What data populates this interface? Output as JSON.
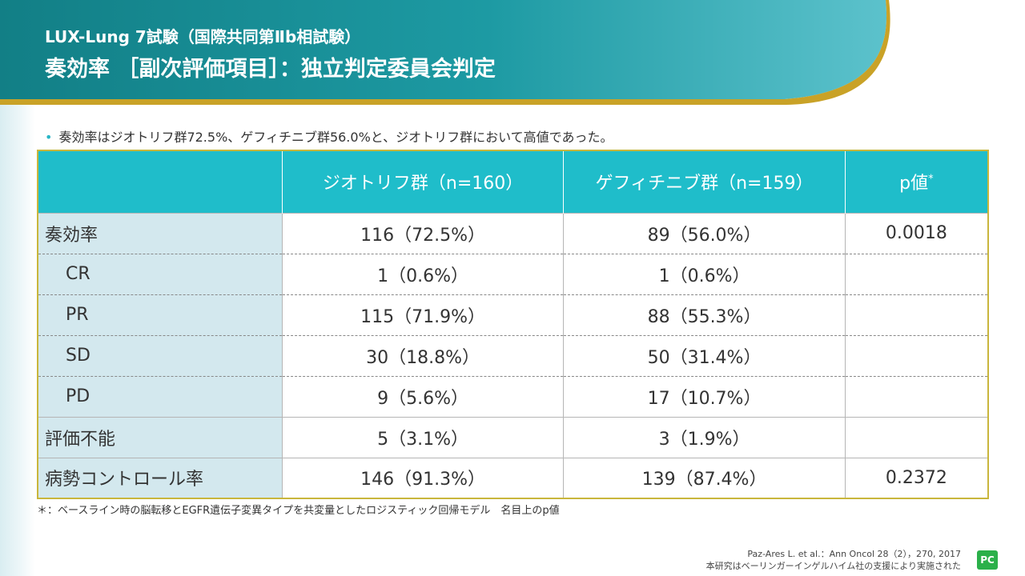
{
  "header": {
    "title_line1": "LUX-Lung 7試験（国際共同第Ⅱb相試験）",
    "title_line2": "奏効率 ［副次評価項目］：独立判定委員会判定",
    "colors": {
      "teal_dark": "#127f86",
      "teal_light": "#48b9c4",
      "gold": "#c9a227"
    }
  },
  "bullet": "奏効率はジオトリフ群72.5%、ゲフィチニブ群56.0%と、ジオトリフ群において高値であった。",
  "table": {
    "headers": [
      "",
      "ジオトリフ群（n=160）",
      "ゲフィチニブ群（n=159）",
      "p値"
    ],
    "pvalue_mark": "*",
    "rows": [
      {
        "label": "奏効率",
        "a": "116（72.5%）",
        "b": "89（56.0%）",
        "p": "0.0018"
      },
      {
        "label": "CR",
        "a": "1（0.6%）",
        "b": "1（0.6%）",
        "p": ""
      },
      {
        "label": "PR",
        "a": "115（71.9%）",
        "b": "88（55.3%）",
        "p": ""
      },
      {
        "label": "SD",
        "a": "30（18.8%）",
        "b": "50（31.4%）",
        "p": ""
      },
      {
        "label": "PD",
        "a": "9（5.6%）",
        "b": "17（10.7%）",
        "p": ""
      },
      {
        "label": "評価不能",
        "a": "5（3.1%）",
        "b": "3（1.9%）",
        "p": ""
      },
      {
        "label": "病勢コントロール率",
        "a": "146（91.3%）",
        "b": "139（87.4%）",
        "p": "0.2372"
      }
    ]
  },
  "footnote": "＊：ベースライン時の脳転移とEGFR遺伝子変異タイプを共変量としたロジスティック回帰モデル　名目上のp値",
  "citation": {
    "line1": "Paz-Ares L. et al.：Ann Oncol 28（2），270, 2017",
    "line2": "本研究はベーリンガーインゲルハイム社の支援により実施された"
  },
  "logo_text": "PC"
}
